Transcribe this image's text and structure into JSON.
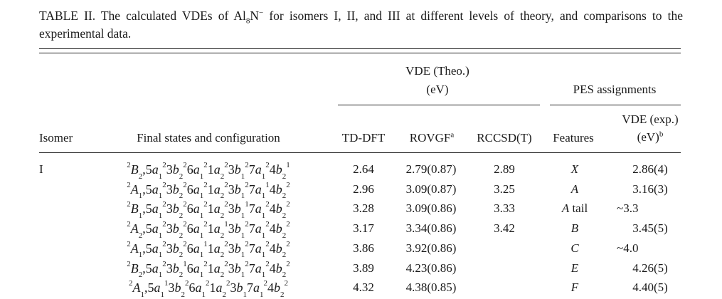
{
  "caption": {
    "prefix": "TABLE II. The calculated VDEs of Al",
    "sub": "8",
    "mid": "N",
    "sup": "−",
    "suffix": " for isomers I, II, and III at different levels of theory, and comparisons to the experimental data."
  },
  "headers": {
    "group_theo": "VDE (Theo.)",
    "group_theo_unit": "(eV)",
    "group_pes": "PES assignments",
    "isomer": "Isomer",
    "final_states": "Final states and configuration",
    "tddft": "TD-DFT",
    "rovgf": "ROVGF",
    "rovgf_note": "a",
    "rccsdt": "RCCSD(T)",
    "features": "Features",
    "vde_exp": "VDE (exp.)",
    "vde_exp_unit": "(eV)",
    "vde_exp_note": "b"
  },
  "rows": [
    {
      "isomer": "I",
      "state": {
        "mult": "2",
        "sym": "B",
        "sub": "2"
      },
      "orbitals": [
        [
          "5",
          "a",
          "1",
          "2"
        ],
        [
          "3",
          "b",
          "2",
          "2"
        ],
        [
          "6",
          "a",
          "1",
          "2"
        ],
        [
          "1",
          "a",
          "2",
          "2"
        ],
        [
          "3",
          "b",
          "1",
          "2"
        ],
        [
          "7",
          "a",
          "1",
          "2"
        ],
        [
          "4",
          "b",
          "2",
          "1"
        ]
      ],
      "tddft": "2.64",
      "rovgf": "2.79(0.87)",
      "rccsdt": "2.89",
      "feature": "X",
      "feature_suffix": "",
      "vde_exp": "2.86(4)"
    },
    {
      "isomer": "",
      "state": {
        "mult": "2",
        "sym": "A",
        "sub": "1"
      },
      "orbitals": [
        [
          "5",
          "a",
          "1",
          "2"
        ],
        [
          "3",
          "b",
          "2",
          "2"
        ],
        [
          "6",
          "a",
          "1",
          "2"
        ],
        [
          "1",
          "a",
          "2",
          "2"
        ],
        [
          "3",
          "b",
          "1",
          "2"
        ],
        [
          "7",
          "a",
          "1",
          "1"
        ],
        [
          "4",
          "b",
          "2",
          "2"
        ]
      ],
      "tddft": "2.96",
      "rovgf": "3.09(0.87)",
      "rccsdt": "3.25",
      "feature": "A",
      "feature_suffix": "",
      "vde_exp": "3.16(3)"
    },
    {
      "isomer": "",
      "state": {
        "mult": "2",
        "sym": "B",
        "sub": "1"
      },
      "orbitals": [
        [
          "5",
          "a",
          "1",
          "2"
        ],
        [
          "3",
          "b",
          "2",
          "2"
        ],
        [
          "6",
          "a",
          "1",
          "2"
        ],
        [
          "1",
          "a",
          "2",
          "2"
        ],
        [
          "3",
          "b",
          "1",
          "1"
        ],
        [
          "7",
          "a",
          "1",
          "2"
        ],
        [
          "4",
          "b",
          "2",
          "2"
        ]
      ],
      "tddft": "3.28",
      "rovgf": "3.09(0.86)",
      "rccsdt": "3.33",
      "feature": "A",
      "feature_suffix": " tail",
      "vde_exp": "~3.3"
    },
    {
      "isomer": "",
      "state": {
        "mult": "2",
        "sym": "A",
        "sub": "2"
      },
      "orbitals": [
        [
          "5",
          "a",
          "1",
          "2"
        ],
        [
          "3",
          "b",
          "2",
          "2"
        ],
        [
          "6",
          "a",
          "1",
          "2"
        ],
        [
          "1",
          "a",
          "2",
          "1"
        ],
        [
          "3",
          "b",
          "1",
          "2"
        ],
        [
          "7",
          "a",
          "1",
          "2"
        ],
        [
          "4",
          "b",
          "2",
          "2"
        ]
      ],
      "tddft": "3.17",
      "rovgf": "3.34(0.86)",
      "rccsdt": "3.42",
      "feature": "B",
      "feature_suffix": "",
      "vde_exp": "3.45(5)"
    },
    {
      "isomer": "",
      "state": {
        "mult": "2",
        "sym": "A",
        "sub": "1"
      },
      "orbitals": [
        [
          "5",
          "a",
          "1",
          "2"
        ],
        [
          "3",
          "b",
          "2",
          "2"
        ],
        [
          "6",
          "a",
          "1",
          "1"
        ],
        [
          "1",
          "a",
          "2",
          "2"
        ],
        [
          "3",
          "b",
          "1",
          "2"
        ],
        [
          "7",
          "a",
          "1",
          "2"
        ],
        [
          "4",
          "b",
          "2",
          "2"
        ]
      ],
      "tddft": "3.86",
      "rovgf": "3.92(0.86)",
      "rccsdt": "",
      "feature": "C",
      "feature_suffix": "",
      "vde_exp": "~4.0"
    },
    {
      "isomer": "",
      "state": {
        "mult": "2",
        "sym": "B",
        "sub": "2"
      },
      "orbitals": [
        [
          "5",
          "a",
          "1",
          "2"
        ],
        [
          "3",
          "b",
          "2",
          "1"
        ],
        [
          "6",
          "a",
          "1",
          "2"
        ],
        [
          "1",
          "a",
          "2",
          "2"
        ],
        [
          "3",
          "b",
          "1",
          "2"
        ],
        [
          "7",
          "a",
          "1",
          "2"
        ],
        [
          "4",
          "b",
          "2",
          "2"
        ]
      ],
      "tddft": "3.89",
      "rovgf": "4.23(0.86)",
      "rccsdt": "",
      "feature": "E",
      "feature_suffix": "",
      "vde_exp": "4.26(5)"
    },
    {
      "isomer": "",
      "state": {
        "mult": "2",
        "sym": "A",
        "sub": "1"
      },
      "orbitals": [
        [
          "5",
          "a",
          "1",
          "1"
        ],
        [
          "3",
          "b",
          "2",
          "2"
        ],
        [
          "6",
          "a",
          "1",
          "2"
        ],
        [
          "1",
          "a",
          "2",
          "2"
        ],
        [
          "3",
          "b",
          "1",
          ""
        ],
        [
          "7",
          "a",
          "1",
          "2"
        ],
        [
          "4",
          "b",
          "2",
          "2"
        ]
      ],
      "tddft": "4.32",
      "rovgf": "4.38(0.85)",
      "rccsdt": "",
      "feature": "F",
      "feature_suffix": "",
      "vde_exp": "4.40(5)"
    }
  ]
}
